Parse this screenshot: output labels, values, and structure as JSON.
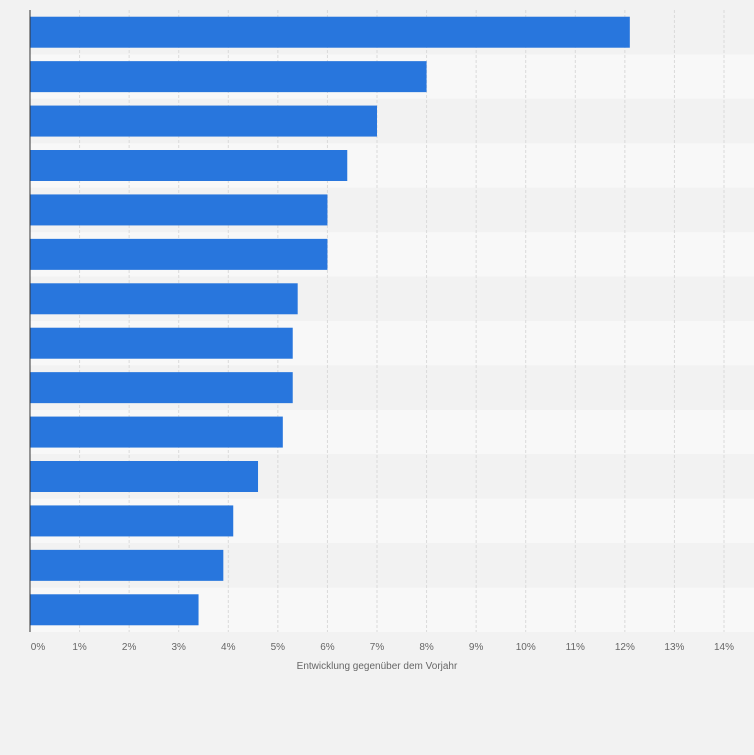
{
  "chart_data": {
    "type": "bar",
    "orientation": "horizontal",
    "categories": [
      "",
      "",
      "",
      "",
      "",
      "",
      "",
      "",
      "",
      "",
      "",
      "",
      "",
      ""
    ],
    "values": [
      12.1,
      8.0,
      7.0,
      6.4,
      6.0,
      6.0,
      5.4,
      5.3,
      5.3,
      5.1,
      4.6,
      4.1,
      3.9,
      3.4
    ],
    "xlim": [
      0,
      14
    ],
    "x_ticks": [
      "0%",
      "1%",
      "2%",
      "3%",
      "4%",
      "5%",
      "6%",
      "7%",
      "8%",
      "9%",
      "10%",
      "11%",
      "12%",
      "13%",
      "14%"
    ],
    "xlabel": "Entwicklung gegenüber dem Vorjahr",
    "ylabel": "",
    "grid": true,
    "legend": "none",
    "colors": {
      "bar": "#2876dd",
      "band_dark": "#f2f2f2",
      "band_light": "#f8f8f8",
      "grid": "#dadada",
      "axis": "#333333",
      "tick_text": "#666666"
    }
  }
}
